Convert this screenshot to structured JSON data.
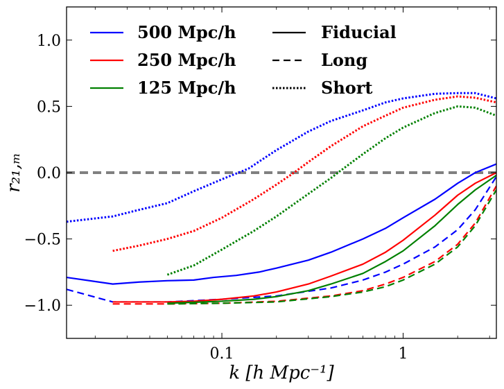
{
  "chart_data": {
    "type": "line",
    "title": "",
    "xlabel": "k [h Mpc⁻¹]",
    "ylabel": "r₂₁,ₘ",
    "xscale": "log",
    "xlim": [
      0.0139,
      3.27
    ],
    "ylim": [
      -1.25,
      1.25
    ],
    "xticks": [
      {
        "value": 0.1,
        "label": "0.1"
      },
      {
        "value": 1,
        "label": "1"
      }
    ],
    "yticks": [
      {
        "value": -1.0,
        "label": "−1.0"
      },
      {
        "value": -0.5,
        "label": "−0.5"
      },
      {
        "value": 0.0,
        "label": "0.0"
      },
      {
        "value": 0.5,
        "label": "0.5"
      },
      {
        "value": 1.0,
        "label": "1.0"
      }
    ],
    "reference_line": {
      "y": 0.0,
      "color": "#808080",
      "style": "dashed"
    },
    "legend": {
      "placement": "top",
      "boxes": [
        {
          "label": "500 Mpc/h",
          "color": "#0000ff"
        },
        {
          "label": "250 Mpc/h",
          "color": "#ff0000"
        },
        {
          "label": "125 Mpc/h",
          "color": "#008000"
        }
      ],
      "styles": [
        {
          "label": "Fiducial",
          "style": "solid"
        },
        {
          "label": "Long",
          "style": "dashed"
        },
        {
          "label": "Short",
          "style": "dotted"
        }
      ]
    },
    "series": [
      {
        "name": "500 Mpc/h Fiducial",
        "color": "#0000ff",
        "style": "solid",
        "x": [
          0.0139,
          0.025,
          0.035,
          0.05,
          0.07,
          0.09,
          0.12,
          0.16,
          0.2,
          0.3,
          0.4,
          0.6,
          0.8,
          1.0,
          1.5,
          2.0,
          2.5,
          3.27
        ],
        "y": [
          -0.79,
          -0.84,
          -0.825,
          -0.815,
          -0.81,
          -0.79,
          -0.775,
          -0.75,
          -0.72,
          -0.66,
          -0.6,
          -0.5,
          -0.42,
          -0.34,
          -0.2,
          -0.08,
          0.0,
          0.065
        ]
      },
      {
        "name": "500 Mpc/h Long",
        "color": "#0000ff",
        "style": "dashed",
        "x": [
          0.0139,
          0.025,
          0.05,
          0.1,
          0.2,
          0.4,
          0.6,
          0.8,
          1.0,
          1.5,
          2.0,
          2.5,
          3.27
        ],
        "y": [
          -0.88,
          -0.975,
          -0.975,
          -0.955,
          -0.93,
          -0.87,
          -0.81,
          -0.75,
          -0.69,
          -0.56,
          -0.43,
          -0.28,
          -0.03
        ]
      },
      {
        "name": "500 Mpc/h Short",
        "color": "#0000ff",
        "style": "dotted",
        "x": [
          0.0139,
          0.025,
          0.035,
          0.05,
          0.07,
          0.1,
          0.14,
          0.2,
          0.3,
          0.4,
          0.6,
          0.8,
          1.0,
          1.5,
          2.0,
          2.5,
          3.27
        ],
        "y": [
          -0.37,
          -0.33,
          -0.28,
          -0.23,
          -0.14,
          -0.05,
          0.03,
          0.17,
          0.31,
          0.39,
          0.47,
          0.53,
          0.56,
          0.595,
          0.6,
          0.6,
          0.56
        ]
      },
      {
        "name": "250 Mpc/h Fiducial",
        "color": "#ff0000",
        "style": "solid",
        "x": [
          0.025,
          0.05,
          0.07,
          0.1,
          0.15,
          0.2,
          0.3,
          0.4,
          0.6,
          0.8,
          1.0,
          1.5,
          2.0,
          2.5,
          3.27
        ],
        "y": [
          -0.975,
          -0.975,
          -0.97,
          -0.955,
          -0.93,
          -0.9,
          -0.84,
          -0.78,
          -0.69,
          -0.6,
          -0.51,
          -0.32,
          -0.17,
          -0.08,
          0.0
        ]
      },
      {
        "name": "250 Mpc/h Long",
        "color": "#ff0000",
        "style": "dashed",
        "x": [
          0.025,
          0.05,
          0.1,
          0.2,
          0.4,
          0.6,
          0.8,
          1.0,
          1.5,
          2.0,
          2.5,
          3.27
        ],
        "y": [
          -0.99,
          -0.99,
          -0.985,
          -0.97,
          -0.93,
          -0.89,
          -0.84,
          -0.79,
          -0.67,
          -0.54,
          -0.38,
          -0.1
        ]
      },
      {
        "name": "250 Mpc/h Short",
        "color": "#ff0000",
        "style": "dotted",
        "x": [
          0.025,
          0.035,
          0.05,
          0.07,
          0.1,
          0.15,
          0.2,
          0.25,
          0.3,
          0.4,
          0.6,
          0.8,
          1.0,
          1.5,
          2.0,
          2.5,
          3.27
        ],
        "y": [
          -0.59,
          -0.55,
          -0.5,
          -0.44,
          -0.34,
          -0.2,
          -0.09,
          0.0,
          0.08,
          0.2,
          0.35,
          0.43,
          0.49,
          0.55,
          0.575,
          0.565,
          0.53
        ]
      },
      {
        "name": "125 Mpc/h Fiducial",
        "color": "#008000",
        "style": "solid",
        "x": [
          0.05,
          0.1,
          0.15,
          0.2,
          0.3,
          0.4,
          0.6,
          0.8,
          1.0,
          1.5,
          2.0,
          2.5,
          3.27
        ],
        "y": [
          -0.985,
          -0.97,
          -0.955,
          -0.935,
          -0.89,
          -0.84,
          -0.76,
          -0.67,
          -0.59,
          -0.4,
          -0.24,
          -0.13,
          -0.02
        ]
      },
      {
        "name": "125 Mpc/h Long",
        "color": "#008000",
        "style": "dashed",
        "x": [
          0.05,
          0.1,
          0.2,
          0.4,
          0.6,
          0.8,
          1.0,
          1.5,
          2.0,
          2.5,
          3.27
        ],
        "y": [
          -0.99,
          -0.985,
          -0.975,
          -0.935,
          -0.9,
          -0.86,
          -0.81,
          -0.69,
          -0.56,
          -0.4,
          -0.13
        ]
      },
      {
        "name": "125 Mpc/h Short",
        "color": "#008000",
        "style": "dotted",
        "x": [
          0.05,
          0.07,
          0.1,
          0.15,
          0.2,
          0.3,
          0.4,
          0.5,
          0.6,
          0.8,
          1.0,
          1.5,
          2.0,
          2.5,
          3.27
        ],
        "y": [
          -0.77,
          -0.7,
          -0.58,
          -0.44,
          -0.33,
          -0.16,
          -0.04,
          0.06,
          0.14,
          0.26,
          0.34,
          0.45,
          0.5,
          0.49,
          0.43
        ]
      }
    ]
  }
}
